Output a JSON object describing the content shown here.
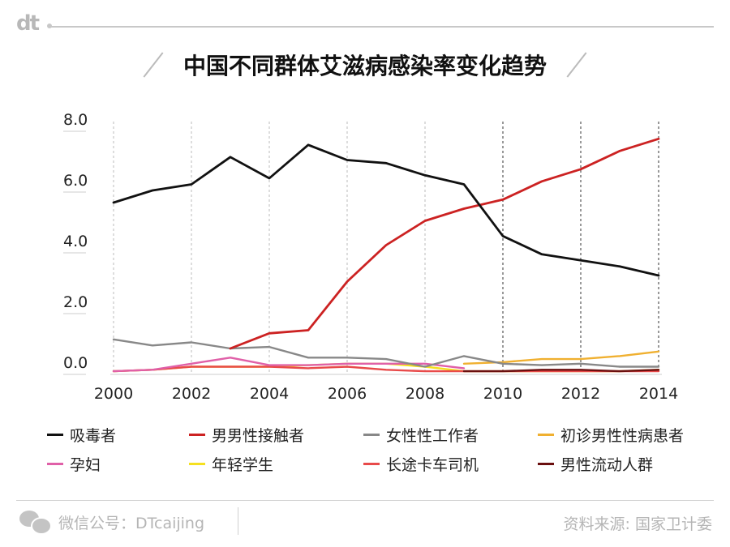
{
  "header": {
    "brand": "dt",
    "title": "中国不同群体艾滋病感染率变化趋势"
  },
  "chart_data": {
    "type": "line",
    "title": "中国不同群体艾滋病感染率变化趋势",
    "xlabel": "",
    "ylabel": "",
    "x": [
      2000,
      2001,
      2002,
      2003,
      2004,
      2005,
      2006,
      2007,
      2008,
      2009,
      2010,
      2011,
      2012,
      2013,
      2014
    ],
    "xticks": [
      "2000",
      "2002",
      "2004",
      "2006",
      "2008",
      "2010",
      "2012",
      "2014"
    ],
    "ylim": [
      0,
      8
    ],
    "yticks": [
      "0.0",
      "2.0",
      "4.0",
      "6.0",
      "8.0"
    ],
    "grid": "vertical dashed",
    "legend_position": "bottom",
    "series": [
      {
        "name": "吸毒者",
        "color": "#111111",
        "x": [
          2000,
          2001,
          2002,
          2003,
          2004,
          2005,
          2006,
          2007,
          2008,
          2009,
          2010,
          2011,
          2012,
          2013,
          2014
        ],
        "values": [
          5.6,
          6.0,
          6.2,
          7.1,
          6.4,
          7.5,
          7.0,
          6.9,
          6.5,
          6.2,
          4.5,
          3.9,
          3.7,
          3.5,
          3.2
        ]
      },
      {
        "name": "男男性接触者",
        "color": "#cc2222",
        "x": [
          2003,
          2004,
          2005,
          2006,
          2007,
          2008,
          2009,
          2010,
          2011,
          2012,
          2013,
          2014
        ],
        "values": [
          0.8,
          1.3,
          1.4,
          3.0,
          4.2,
          5.0,
          5.4,
          5.7,
          6.3,
          6.7,
          7.3,
          7.7
        ]
      },
      {
        "name": "女性性工作者",
        "color": "#888888",
        "x": [
          2000,
          2001,
          2002,
          2003,
          2004,
          2005,
          2006,
          2007,
          2008,
          2009,
          2010,
          2011,
          2012,
          2013,
          2014
        ],
        "values": [
          1.1,
          0.9,
          1.0,
          0.8,
          0.85,
          0.5,
          0.5,
          0.45,
          0.2,
          0.55,
          0.3,
          0.25,
          0.3,
          0.2,
          0.2
        ]
      },
      {
        "name": "初诊男性性病患者",
        "color": "#f0b030",
        "x": [
          2009,
          2010,
          2011,
          2012,
          2013,
          2014
        ],
        "values": [
          0.3,
          0.35,
          0.45,
          0.45,
          0.55,
          0.7
        ]
      },
      {
        "name": "孕妇",
        "color": "#e060a8",
        "x": [
          2000,
          2001,
          2002,
          2003,
          2004,
          2005,
          2006,
          2007,
          2008,
          2009
        ],
        "values": [
          0.05,
          0.1,
          0.3,
          0.5,
          0.25,
          0.25,
          0.3,
          0.3,
          0.3,
          0.15
        ]
      },
      {
        "name": "年轻学生",
        "color": "#f5e020",
        "x": [
          2000,
          2001,
          2002,
          2003,
          2004,
          2005,
          2006,
          2007,
          2008,
          2009,
          2010,
          2011,
          2012,
          2013,
          2014
        ],
        "values": [
          0.05,
          0.1,
          0.2,
          0.2,
          0.2,
          0.25,
          0.3,
          0.3,
          0.2,
          0.05,
          0.05,
          0.05,
          0.05,
          0.05,
          0.1
        ]
      },
      {
        "name": "长途卡车司机",
        "color": "#e84a4a",
        "x": [
          2000,
          2001,
          2002,
          2003,
          2004,
          2005,
          2006,
          2007,
          2008,
          2009,
          2010,
          2011,
          2012,
          2013,
          2014
        ],
        "values": [
          0.05,
          0.1,
          0.2,
          0.2,
          0.2,
          0.15,
          0.2,
          0.1,
          0.05,
          0.05,
          0.05,
          0.05,
          0.05,
          0.05,
          0.05
        ]
      },
      {
        "name": "男性流动人群",
        "color": "#6a0f0f",
        "x": [
          2009,
          2010,
          2011,
          2012,
          2013,
          2014
        ],
        "values": [
          0.05,
          0.05,
          0.1,
          0.1,
          0.05,
          0.1
        ]
      }
    ]
  },
  "legend": [
    {
      "label": "吸毒者",
      "color": "#111111"
    },
    {
      "label": "男男性接触者",
      "color": "#cc2222"
    },
    {
      "label": "女性性工作者",
      "color": "#888888"
    },
    {
      "label": "初诊男性性病患者",
      "color": "#f0b030"
    },
    {
      "label": "孕妇",
      "color": "#e060a8"
    },
    {
      "label": "年轻学生",
      "color": "#f5e020"
    },
    {
      "label": "长途卡车司机",
      "color": "#e84a4a"
    },
    {
      "label": "男性流动人群",
      "color": "#6a0f0f"
    }
  ],
  "footer": {
    "wechat": "微信公号：DTcaijing",
    "source": "资料来源: 国家卫计委",
    "wechat_icon": "wechat-icon"
  }
}
